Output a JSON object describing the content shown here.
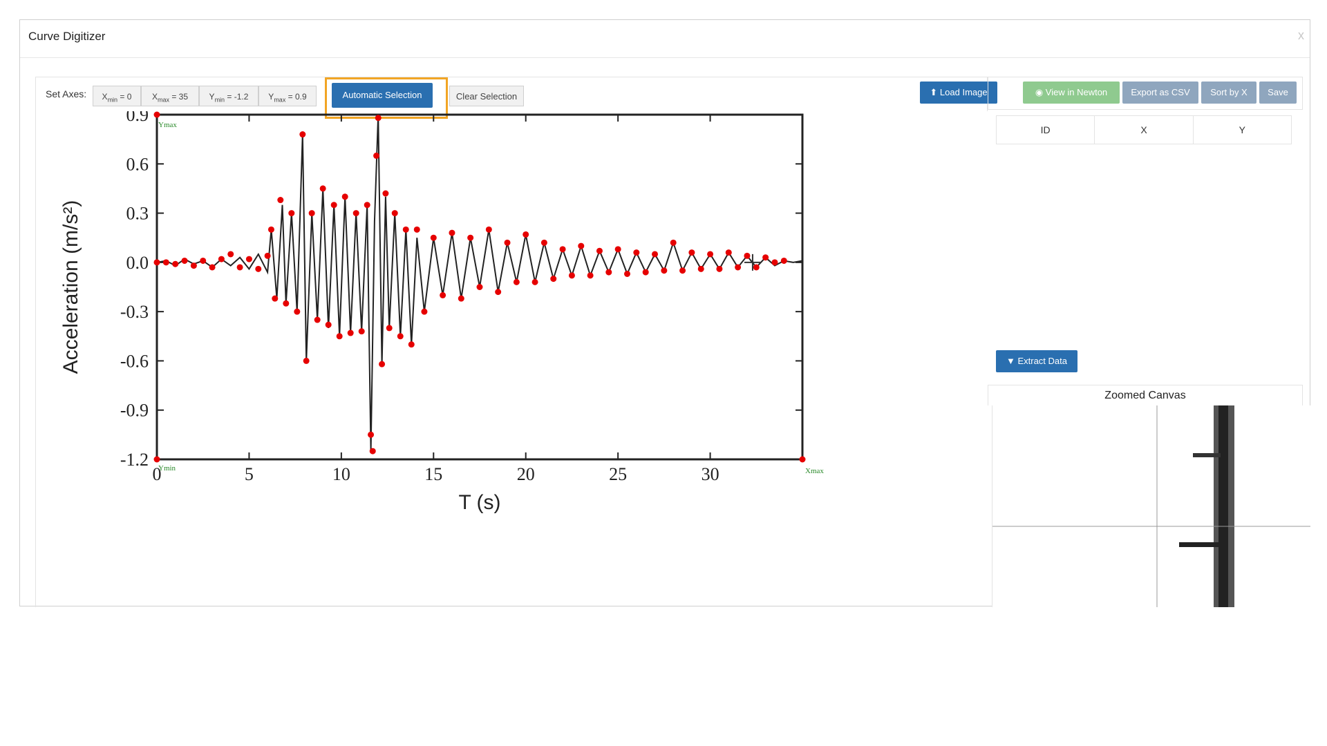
{
  "dialog": {
    "title": "Curve Digitizer",
    "close": "x"
  },
  "toolbar": {
    "set_axes_label": "Set Axes:",
    "xmin": {
      "prefix": "X",
      "sub": "min",
      "suffix": " = 0"
    },
    "xmax": {
      "prefix": "X",
      "sub": "max",
      "suffix": " = 35"
    },
    "ymin": {
      "prefix": "Y",
      "sub": "min",
      "suffix": " = -1.2"
    },
    "ymax": {
      "prefix": "Y",
      "sub": "max",
      "suffix": " = 0.9"
    },
    "automatic_selection": "Automatic Selection",
    "clear_selection": "Clear Selection",
    "load_image": "Load Image"
  },
  "right_toolbar": {
    "view_newton": "View in Newton",
    "export_csv": "Export as CSV",
    "sort_by_x": "Sort by X",
    "save": "Save"
  },
  "table": {
    "headers": [
      "ID",
      "X",
      "Y"
    ]
  },
  "extract_data": "Extract Data",
  "zoomed_canvas_title": "Zoomed Canvas",
  "colors": {
    "primary": "#2a6fb0",
    "success": "#8fca8f",
    "muted": "#8fa6be",
    "highlight": "#f2a524",
    "point": "#e60000"
  },
  "chart_data": {
    "type": "line",
    "xlabel": "T (s)",
    "ylabel": "Acceleration (m/s²)",
    "xlim": [
      0,
      35
    ],
    "ylim": [
      -1.2,
      0.9
    ],
    "x_ticks": [
      "0",
      "5",
      "10",
      "15",
      "20",
      "25",
      "30"
    ],
    "y_ticks": [
      "0.9",
      "0.6",
      "0.3",
      "0.0",
      "-0.3",
      "-0.6",
      "-0.9",
      "-1.2"
    ],
    "axis_markers": {
      "ymax": "Ymax",
      "ymin": "Ymin",
      "xmax": "Xmax"
    },
    "series": [
      {
        "values_x": [
          0,
          0.5,
          1,
          1.5,
          2,
          2.5,
          3,
          3.5,
          4,
          4.5,
          5,
          5.5,
          6,
          6.2,
          6.5,
          6.8,
          7,
          7.3,
          7.6,
          7.9,
          8.1,
          8.4,
          8.7,
          9,
          9.3,
          9.6,
          9.9,
          10.2,
          10.5,
          10.8,
          11.1,
          11.4,
          11.6,
          11.8,
          12,
          12.2,
          12.4,
          12.6,
          12.9,
          13.2,
          13.5,
          13.8,
          14.1,
          14.5,
          15,
          15.5,
          16,
          16.5,
          17,
          17.5,
          18,
          18.5,
          19,
          19.5,
          20,
          20.5,
          21,
          21.5,
          22,
          22.5,
          23,
          23.5,
          24,
          24.5,
          25,
          25.5,
          26,
          26.5,
          27,
          27.5,
          28,
          28.5,
          29,
          29.5,
          30,
          30.5,
          31,
          31.5,
          32,
          32.5,
          33,
          33.5,
          34,
          34.5,
          35
        ],
        "values_y": [
          0,
          0.01,
          -0.02,
          0.02,
          -0.01,
          0.01,
          -0.03,
          0.02,
          -0.02,
          0.03,
          -0.04,
          0.05,
          -0.06,
          0.2,
          -0.22,
          0.35,
          -0.25,
          0.3,
          -0.3,
          0.78,
          -0.6,
          0.3,
          -0.35,
          0.45,
          -0.4,
          0.35,
          -0.45,
          0.4,
          -0.43,
          0.3,
          -0.42,
          0.35,
          -1.15,
          0.25,
          0.9,
          -0.62,
          0.4,
          -0.4,
          0.3,
          -0.45,
          0.2,
          -0.5,
          0.15,
          -0.3,
          0.15,
          -0.2,
          0.18,
          -0.22,
          0.15,
          -0.15,
          0.2,
          -0.18,
          0.12,
          -0.12,
          0.17,
          -0.12,
          0.12,
          -0.1,
          0.08,
          -0.08,
          0.1,
          -0.08,
          0.07,
          -0.06,
          0.08,
          -0.07,
          0.06,
          -0.06,
          0.05,
          -0.05,
          0.12,
          -0.05,
          0.06,
          -0.04,
          0.05,
          -0.04,
          0.06,
          -0.03,
          0.04,
          -0.03,
          0.03,
          -0.02,
          0.01,
          0,
          0.01
        ]
      }
    ],
    "points": [
      [
        0,
        0.9
      ],
      [
        0,
        -1.2
      ],
      [
        35,
        -1.2
      ],
      [
        0,
        0
      ],
      [
        0.5,
        0
      ],
      [
        1,
        -0.01
      ],
      [
        1.5,
        0.01
      ],
      [
        2,
        -0.02
      ],
      [
        2.5,
        0.01
      ],
      [
        3,
        -0.03
      ],
      [
        3.5,
        0.02
      ],
      [
        4,
        0.05
      ],
      [
        4.5,
        -0.03
      ],
      [
        5,
        0.02
      ],
      [
        5.5,
        -0.04
      ],
      [
        6,
        0.04
      ],
      [
        6.2,
        0.2
      ],
      [
        6.4,
        -0.22
      ],
      [
        6.7,
        0.38
      ],
      [
        7,
        -0.25
      ],
      [
        7.3,
        0.3
      ],
      [
        7.6,
        -0.3
      ],
      [
        7.9,
        0.78
      ],
      [
        8.1,
        -0.6
      ],
      [
        8.4,
        0.3
      ],
      [
        8.7,
        -0.35
      ],
      [
        9,
        0.45
      ],
      [
        9.3,
        -0.38
      ],
      [
        9.6,
        0.35
      ],
      [
        9.9,
        -0.45
      ],
      [
        10.2,
        0.4
      ],
      [
        10.5,
        -0.43
      ],
      [
        10.8,
        0.3
      ],
      [
        11.1,
        -0.42
      ],
      [
        11.4,
        0.35
      ],
      [
        11.6,
        -1.05
      ],
      [
        11.7,
        -1.15
      ],
      [
        11.9,
        0.65
      ],
      [
        12,
        0.88
      ],
      [
        12.2,
        -0.62
      ],
      [
        12.4,
        0.42
      ],
      [
        12.6,
        -0.4
      ],
      [
        12.9,
        0.3
      ],
      [
        13.2,
        -0.45
      ],
      [
        13.5,
        0.2
      ],
      [
        13.8,
        -0.5
      ],
      [
        14.1,
        0.2
      ],
      [
        14.5,
        -0.3
      ],
      [
        15,
        0.15
      ],
      [
        15.5,
        -0.2
      ],
      [
        16,
        0.18
      ],
      [
        16.5,
        -0.22
      ],
      [
        17,
        0.15
      ],
      [
        17.5,
        -0.15
      ],
      [
        18,
        0.2
      ],
      [
        18.5,
        -0.18
      ],
      [
        19,
        0.12
      ],
      [
        19.5,
        -0.12
      ],
      [
        20,
        0.17
      ],
      [
        20.5,
        -0.12
      ],
      [
        21,
        0.12
      ],
      [
        21.5,
        -0.1
      ],
      [
        22,
        0.08
      ],
      [
        22.5,
        -0.08
      ],
      [
        23,
        0.1
      ],
      [
        23.5,
        -0.08
      ],
      [
        24,
        0.07
      ],
      [
        24.5,
        -0.06
      ],
      [
        25,
        0.08
      ],
      [
        25.5,
        -0.07
      ],
      [
        26,
        0.06
      ],
      [
        26.5,
        -0.06
      ],
      [
        27,
        0.05
      ],
      [
        27.5,
        -0.05
      ],
      [
        28,
        0.12
      ],
      [
        28.5,
        -0.05
      ],
      [
        29,
        0.06
      ],
      [
        29.5,
        -0.04
      ],
      [
        30,
        0.05
      ],
      [
        30.5,
        -0.04
      ],
      [
        31,
        0.06
      ],
      [
        31.5,
        -0.03
      ],
      [
        32,
        0.04
      ],
      [
        32.5,
        -0.03
      ],
      [
        33,
        0.03
      ],
      [
        33.5,
        0
      ],
      [
        34,
        0.01
      ]
    ]
  }
}
